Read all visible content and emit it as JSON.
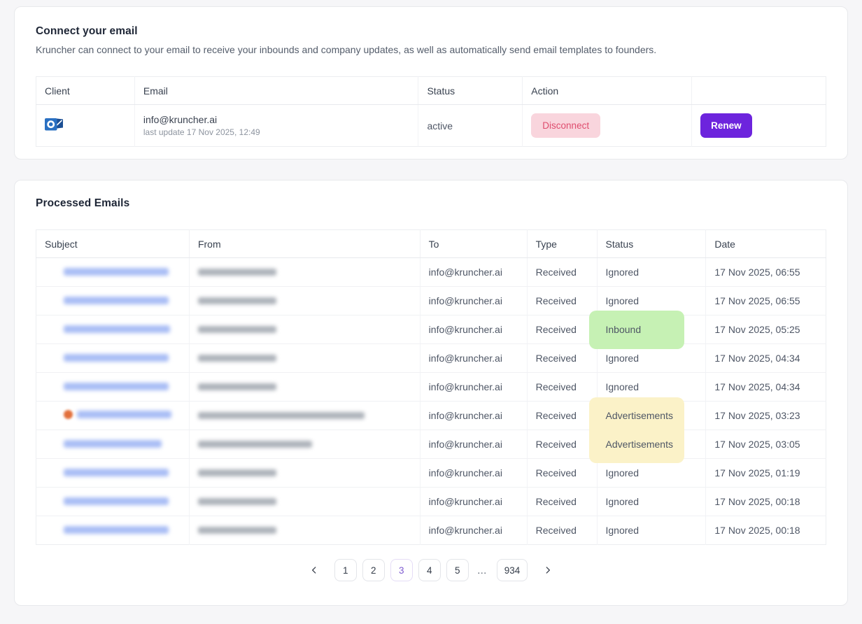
{
  "colors": {
    "page_bg": "#f6f6f8",
    "card_border": "#e8e9ec",
    "accent_purple": "#6d24dd",
    "disconnect_bg": "#f9d5dd",
    "disconnect_text": "#df4d6e",
    "green_highlight": "#c6f1b4",
    "yellow_highlight": "#fbf2c8",
    "pagination_active": "#7e5bd0",
    "subject_blur": "#a9bdf5",
    "from_blur": "#9299a3",
    "emoji_dot": "#e2703c",
    "outlook_blue": "#2a70c2",
    "outlook_dark_blue": "#1c4f94"
  },
  "connect_card": {
    "title": "Connect your email",
    "description": "Kruncher can connect to your email to receive your inbounds and company updates, as well as automatically send email templates to founders.",
    "table": {
      "headers": [
        "Client",
        "Email",
        "Status",
        "Action",
        ""
      ],
      "account": {
        "client_icon": "outlook-icon",
        "email": "info@kruncher.ai",
        "last_update": "last update 17 Nov 2025, 12:49",
        "status": "active",
        "disconnect_label": "Disconnect",
        "renew_label": "Renew"
      }
    }
  },
  "processed_card": {
    "title": "Processed Emails",
    "table": {
      "headers": [
        "Subject",
        "From",
        "To",
        "Type",
        "Status",
        "Date"
      ],
      "rows": [
        {
          "subject_redacted": true,
          "subject_w": 150,
          "from_redacted": true,
          "from_w": 112,
          "emoji": false,
          "to": "info@kruncher.ai",
          "type": "Received",
          "status": "Ignored",
          "highlight": null,
          "date": "17 Nov 2025, 06:55"
        },
        {
          "subject_redacted": true,
          "subject_w": 150,
          "from_redacted": true,
          "from_w": 112,
          "emoji": false,
          "to": "info@kruncher.ai",
          "type": "Received",
          "status": "Ignored",
          "highlight": null,
          "date": "17 Nov 2025, 06:55"
        },
        {
          "subject_redacted": true,
          "subject_w": 152,
          "from_redacted": true,
          "from_w": 112,
          "emoji": false,
          "to": "info@kruncher.ai",
          "type": "Received",
          "status": "Inbound",
          "highlight": "green",
          "date": "17 Nov 2025, 05:25"
        },
        {
          "subject_redacted": true,
          "subject_w": 150,
          "from_redacted": true,
          "from_w": 112,
          "emoji": false,
          "to": "info@kruncher.ai",
          "type": "Received",
          "status": "Ignored",
          "highlight": null,
          "date": "17 Nov 2025, 04:34"
        },
        {
          "subject_redacted": true,
          "subject_w": 150,
          "from_redacted": true,
          "from_w": 112,
          "emoji": false,
          "to": "info@kruncher.ai",
          "type": "Received",
          "status": "Ignored",
          "highlight": null,
          "date": "17 Nov 2025, 04:34"
        },
        {
          "subject_redacted": true,
          "subject_w": 135,
          "from_redacted": true,
          "from_w": 238,
          "emoji": true,
          "to": "info@kruncher.ai",
          "type": "Received",
          "status": "Advertisements",
          "highlight": "yellow",
          "highlight_span": 2,
          "date": "17 Nov 2025, 03:23"
        },
        {
          "subject_redacted": true,
          "subject_w": 140,
          "from_redacted": true,
          "from_w": 163,
          "emoji": false,
          "to": "info@kruncher.ai",
          "type": "Received",
          "status": "Advertisements",
          "highlight": null,
          "date": "17 Nov 2025, 03:05"
        },
        {
          "subject_redacted": true,
          "subject_w": 150,
          "from_redacted": true,
          "from_w": 112,
          "emoji": false,
          "to": "info@kruncher.ai",
          "type": "Received",
          "status": "Ignored",
          "highlight": null,
          "date": "17 Nov 2025, 01:19"
        },
        {
          "subject_redacted": true,
          "subject_w": 150,
          "from_redacted": true,
          "from_w": 112,
          "emoji": false,
          "to": "info@kruncher.ai",
          "type": "Received",
          "status": "Ignored",
          "highlight": null,
          "date": "17 Nov 2025, 00:18"
        },
        {
          "subject_redacted": true,
          "subject_w": 150,
          "from_redacted": true,
          "from_w": 112,
          "emoji": false,
          "to": "info@kruncher.ai",
          "type": "Received",
          "status": "Ignored",
          "highlight": null,
          "date": "17 Nov 2025, 00:18"
        }
      ]
    },
    "pagination": {
      "pages": [
        "1",
        "2",
        "3",
        "4",
        "5",
        "…",
        "934"
      ],
      "current": "3"
    }
  }
}
